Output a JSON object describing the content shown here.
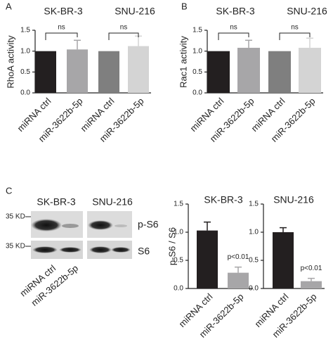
{
  "chart_data": [
    {
      "type": "bar",
      "panel": "A",
      "groups": [
        "SK-BR-3",
        "SNU-216"
      ],
      "y_label": "RhoA activity",
      "categories": [
        "miRNA ctrl",
        "miR-3622b-5p",
        "miRNA ctrl",
        "miR-3622b-5p"
      ],
      "series": [
        {
          "values": [
            1.0,
            1.04,
            1.0,
            1.12
          ],
          "errors": [
            null,
            0.22,
            null,
            0.24
          ],
          "colors": [
            "#231f20",
            "#a7a6a8",
            "#7f7f7f",
            "#d4d4d4"
          ]
        }
      ],
      "annotations": [
        "ns",
        "ns"
      ],
      "ylim": [
        0,
        1.5
      ],
      "yticks": [
        {
          "value": 0,
          "label": "0.0"
        },
        {
          "value": 0.5,
          "label": "0.5"
        },
        {
          "value": 1,
          "label": "1.0"
        },
        {
          "value": 1.5,
          "label": "1.5"
        }
      ]
    },
    {
      "type": "bar",
      "panel": "B",
      "groups": [
        "SK-BR-3",
        "SNU-216"
      ],
      "y_label": "Rac1 activity",
      "categories": [
        "miRNA ctrl",
        "miR-3622b-5p",
        "miRNA ctrl",
        "miR-3622b-5p"
      ],
      "series": [
        {
          "values": [
            1.0,
            1.08,
            1.0,
            1.08
          ],
          "errors": [
            null,
            0.18,
            null,
            0.23
          ],
          "colors": [
            "#231f20",
            "#a7a6a8",
            "#7f7f7f",
            "#d4d4d4"
          ]
        }
      ],
      "annotations": [
        "ns",
        "ns"
      ],
      "ylim": [
        0,
        1.5
      ],
      "yticks": [
        {
          "value": 0,
          "label": "0.0"
        },
        {
          "value": 0.5,
          "label": "0.5"
        },
        {
          "value": 1,
          "label": "1.0"
        },
        {
          "value": 1.5,
          "label": "1.5"
        }
      ]
    },
    {
      "type": "bar",
      "title": "SK-BR-3",
      "y_label": "p-S6 / S6",
      "categories": [
        "miRNA ctrl",
        "miR-3622b-5p"
      ],
      "series": [
        {
          "values": [
            1.03,
            0.28
          ],
          "errors": [
            0.15,
            0.1
          ],
          "colors": [
            "#231f20",
            "#a7a6a8"
          ]
        }
      ],
      "annotations": [
        "p<0.01"
      ],
      "ylim": [
        0,
        1.5
      ],
      "yticks": [
        {
          "value": 0,
          "label": "0.0"
        },
        {
          "value": 0.5,
          "label": "0.5"
        },
        {
          "value": 1,
          "label": "1.0"
        },
        {
          "value": 1.5,
          "label": "1.5"
        }
      ]
    },
    {
      "type": "bar",
      "title": "SNU-216",
      "categories": [
        "miRNA ctrl",
        "miR-3622b-5p"
      ],
      "series": [
        {
          "values": [
            1.0,
            0.13
          ],
          "errors": [
            0.08,
            0.05
          ],
          "colors": [
            "#231f20",
            "#a7a6a8"
          ]
        }
      ],
      "annotations": [
        "p<0.01"
      ],
      "ylim": [
        0,
        1.5
      ],
      "yticks": [
        {
          "value": 0,
          "label": "0.0"
        },
        {
          "value": 0.5,
          "label": "0.5"
        },
        {
          "value": 1,
          "label": "1.0"
        },
        {
          "value": 1.5,
          "label": "1.5"
        }
      ]
    }
  ],
  "blot": {
    "panel": "C",
    "cell_lines": [
      "SK-BR-3",
      "SNU-216"
    ],
    "markers": [
      "35 KD",
      "35 KD"
    ],
    "proteins": [
      "p-S6",
      "S6"
    ],
    "categories": [
      "miRNA ctrl",
      "miR-3622b-5p"
    ]
  }
}
